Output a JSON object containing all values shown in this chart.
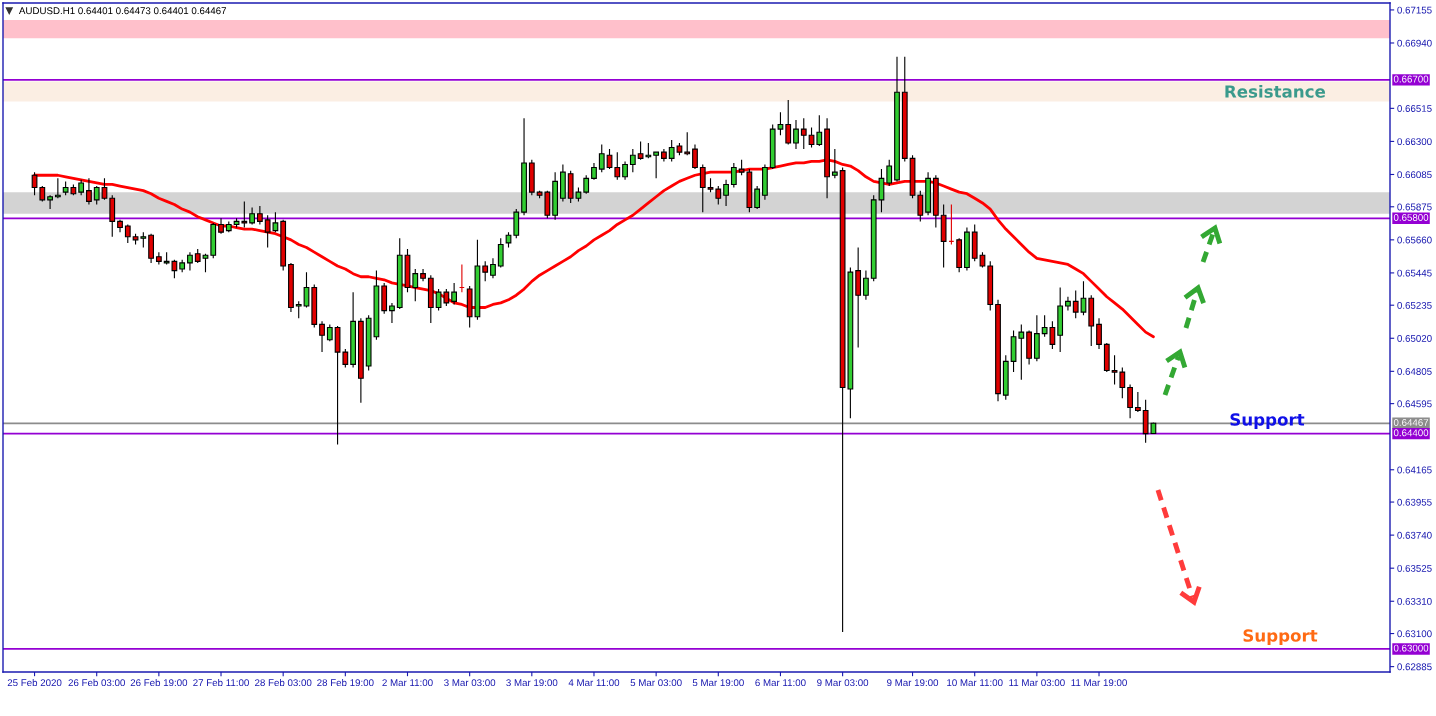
{
  "chart_data": {
    "type": "candlestick",
    "title": "AUDUSD.H1 0.64401 0.64473 0.64401 0.64467",
    "categories": [
      "25 Feb 2020",
      null,
      null,
      null,
      null,
      null,
      null,
      null,
      "26 Feb 03:00",
      null,
      null,
      null,
      null,
      null,
      null,
      null,
      "26 Feb 19:00",
      null,
      null,
      null,
      null,
      null,
      null,
      null,
      "27 Feb 11:00",
      null,
      null,
      null,
      null,
      null,
      null,
      null,
      "28 Feb 03:00",
      null,
      null,
      null,
      null,
      null,
      null,
      null,
      "28 Feb 19:00",
      null,
      null,
      null,
      null,
      null,
      null,
      null,
      "2 Mar 11:00",
      null,
      null,
      null,
      null,
      null,
      null,
      null,
      "3 Mar 03:00",
      null,
      null,
      null,
      null,
      null,
      null,
      null,
      "3 Mar 19:00",
      null,
      null,
      null,
      null,
      null,
      null,
      null,
      "4 Mar 11:00",
      null,
      null,
      null,
      null,
      null,
      null,
      null,
      "5 Mar 03:00",
      null,
      null,
      null,
      null,
      null,
      null,
      null,
      "5 Mar 19:00",
      null,
      null,
      null,
      null,
      null,
      null,
      null,
      "6 Mar 11:00",
      null,
      null,
      null,
      null,
      null,
      null,
      null,
      "9 Mar 03:00",
      null,
      null,
      null,
      null,
      null,
      null,
      null,
      null,
      "9 Mar 19:00",
      null,
      null,
      null,
      null,
      null,
      null,
      null,
      "10 Mar 11:00",
      null,
      null,
      null,
      null,
      null,
      null,
      null,
      "11 Mar 03:00",
      null,
      null,
      null,
      null,
      null,
      null,
      null,
      "11 Mar 19:00",
      null,
      null,
      null,
      null,
      null,
      null,
      null
    ],
    "ohlc": [
      [
        0.6608,
        0.661,
        0.6595,
        0.66
      ],
      [
        0.66,
        0.6601,
        0.6591,
        0.6592
      ],
      [
        0.6592,
        0.6595,
        0.6586,
        0.6594
      ],
      [
        0.6594,
        0.6606,
        0.6593,
        0.6595
      ],
      [
        0.6597,
        0.6604,
        0.6595,
        0.66
      ],
      [
        0.66,
        0.6602,
        0.6595,
        0.6596
      ],
      [
        0.6597,
        0.6605,
        0.6595,
        0.6603
      ],
      [
        0.6598,
        0.6606,
        0.6589,
        0.6591
      ],
      [
        0.6592,
        0.6601,
        0.6589,
        0.66
      ],
      [
        0.66,
        0.6606,
        0.6592,
        0.6593
      ],
      [
        0.6593,
        0.6595,
        0.6568,
        0.6578
      ],
      [
        0.6578,
        0.6579,
        0.6571,
        0.6574
      ],
      [
        0.6575,
        0.6576,
        0.6564,
        0.6568
      ],
      [
        0.6568,
        0.657,
        0.6563,
        0.6566
      ],
      [
        0.6567,
        0.6571,
        0.6561,
        0.6568
      ],
      [
        0.6569,
        0.657,
        0.6551,
        0.6554
      ],
      [
        0.6555,
        0.6558,
        0.655,
        0.6552
      ],
      [
        0.6551,
        0.6558,
        0.655,
        0.6552
      ],
      [
        0.6552,
        0.6553,
        0.6541,
        0.6546
      ],
      [
        0.6547,
        0.6553,
        0.6545,
        0.6551
      ],
      [
        0.6551,
        0.6558,
        0.6546,
        0.6556
      ],
      [
        0.6557,
        0.656,
        0.6551,
        0.6552
      ],
      [
        0.6554,
        0.6557,
        0.6545,
        0.6556
      ],
      [
        0.6556,
        0.6577,
        0.6554,
        0.6576
      ],
      [
        0.6576,
        0.658,
        0.657,
        0.6571
      ],
      [
        0.6572,
        0.6578,
        0.6571,
        0.6576
      ],
      [
        0.6576,
        0.658,
        0.6574,
        0.6578
      ],
      [
        0.6578,
        0.6591,
        0.6574,
        0.6577
      ],
      [
        0.6577,
        0.6587,
        0.6576,
        0.6583
      ],
      [
        0.6583,
        0.6588,
        0.6576,
        0.6578
      ],
      [
        0.6579,
        0.6582,
        0.6561,
        0.6571
      ],
      [
        0.6572,
        0.6584,
        0.6571,
        0.6577
      ],
      [
        0.6578,
        0.6579,
        0.6546,
        0.6549
      ],
      [
        0.655,
        0.6551,
        0.6519,
        0.6522
      ],
      [
        0.6523,
        0.6526,
        0.6515,
        0.6524
      ],
      [
        0.6523,
        0.6545,
        0.6522,
        0.6535
      ],
      [
        0.6535,
        0.6537,
        0.6509,
        0.6511
      ],
      [
        0.6511,
        0.6513,
        0.6493,
        0.6504
      ],
      [
        0.6501,
        0.6511,
        0.65,
        0.6509
      ],
      [
        0.6509,
        0.651,
        0.6433,
        0.6493
      ],
      [
        0.6493,
        0.6495,
        0.6483,
        0.6485
      ],
      [
        0.6485,
        0.6532,
        0.6483,
        0.6513
      ],
      [
        0.6513,
        0.6515,
        0.646,
        0.6476
      ],
      [
        0.6484,
        0.6517,
        0.6481,
        0.6515
      ],
      [
        0.6503,
        0.6546,
        0.6501,
        0.6536
      ],
      [
        0.6536,
        0.6538,
        0.6518,
        0.652
      ],
      [
        0.652,
        0.6525,
        0.6512,
        0.6523
      ],
      [
        0.6522,
        0.6567,
        0.6521,
        0.6556
      ],
      [
        0.6556,
        0.656,
        0.6532,
        0.6535
      ],
      [
        0.6535,
        0.6547,
        0.6526,
        0.6544
      ],
      [
        0.6544,
        0.6547,
        0.6539,
        0.6541
      ],
      [
        0.6541,
        0.6543,
        0.6512,
        0.6522
      ],
      [
        0.6522,
        0.6534,
        0.652,
        0.6532
      ],
      [
        0.6532,
        0.6534,
        0.6523,
        0.6525
      ],
      [
        0.6526,
        0.6538,
        0.6524,
        0.6532
      ],
      [
        0.6535,
        0.655,
        0.6532,
        0.6535
      ],
      [
        0.6534,
        0.6536,
        0.6509,
        0.6516
      ],
      [
        0.6516,
        0.6566,
        0.6514,
        0.6549
      ],
      [
        0.6549,
        0.6552,
        0.6539,
        0.6545
      ],
      [
        0.6543,
        0.6554,
        0.6541,
        0.655
      ],
      [
        0.6549,
        0.6567,
        0.6548,
        0.6563
      ],
      [
        0.6564,
        0.6571,
        0.6561,
        0.6569
      ],
      [
        0.6569,
        0.6586,
        0.6567,
        0.6584
      ],
      [
        0.6584,
        0.6645,
        0.6582,
        0.6616
      ],
      [
        0.6616,
        0.6618,
        0.6595,
        0.6597
      ],
      [
        0.6597,
        0.6598,
        0.6593,
        0.6595
      ],
      [
        0.6597,
        0.6598,
        0.658,
        0.6582
      ],
      [
        0.6582,
        0.661,
        0.6579,
        0.6604
      ],
      [
        0.6593,
        0.6615,
        0.6591,
        0.661
      ],
      [
        0.6609,
        0.6611,
        0.659,
        0.6593
      ],
      [
        0.6593,
        0.66,
        0.6591,
        0.6597
      ],
      [
        0.6597,
        0.6608,
        0.6596,
        0.6606
      ],
      [
        0.6606,
        0.6616,
        0.6605,
        0.6613
      ],
      [
        0.6612,
        0.6628,
        0.661,
        0.6622
      ],
      [
        0.6621,
        0.6625,
        0.6612,
        0.6613
      ],
      [
        0.6613,
        0.6623,
        0.6605,
        0.6607
      ],
      [
        0.6607,
        0.6617,
        0.6605,
        0.6615
      ],
      [
        0.6615,
        0.6625,
        0.661,
        0.6621
      ],
      [
        0.6622,
        0.663,
        0.6618,
        0.6619
      ],
      [
        0.662,
        0.6629,
        0.6619,
        0.6621
      ],
      [
        0.6621,
        0.6623,
        0.6606,
        0.6623
      ],
      [
        0.6623,
        0.6625,
        0.6617,
        0.6619
      ],
      [
        0.6619,
        0.6631,
        0.6617,
        0.6626
      ],
      [
        0.6627,
        0.6629,
        0.6621,
        0.6623
      ],
      [
        0.6623,
        0.6636,
        0.6621,
        0.6622
      ],
      [
        0.6625,
        0.6628,
        0.6612,
        0.6613
      ],
      [
        0.6613,
        0.6615,
        0.6584,
        0.66
      ],
      [
        0.66,
        0.6606,
        0.6597,
        0.6599
      ],
      [
        0.6599,
        0.6601,
        0.6589,
        0.6593
      ],
      [
        0.6595,
        0.6605,
        0.6588,
        0.6602
      ],
      [
        0.6602,
        0.6616,
        0.66,
        0.6613
      ],
      [
        0.6612,
        0.6618,
        0.6608,
        0.661
      ],
      [
        0.661,
        0.6612,
        0.6584,
        0.6587
      ],
      [
        0.6587,
        0.6601,
        0.6586,
        0.6599
      ],
      [
        0.6595,
        0.6615,
        0.6592,
        0.6613
      ],
      [
        0.6613,
        0.6641,
        0.6612,
        0.6638
      ],
      [
        0.6638,
        0.6649,
        0.6634,
        0.6641
      ],
      [
        0.6641,
        0.6657,
        0.6628,
        0.6629
      ],
      [
        0.6629,
        0.6644,
        0.6625,
        0.6638
      ],
      [
        0.6638,
        0.6645,
        0.6625,
        0.6634
      ],
      [
        0.6634,
        0.6639,
        0.6626,
        0.6628
      ],
      [
        0.6628,
        0.6647,
        0.6627,
        0.6636
      ],
      [
        0.6638,
        0.6645,
        0.6593,
        0.6607
      ],
      [
        0.6608,
        0.6625,
        0.6606,
        0.661
      ],
      [
        0.6611,
        0.6613,
        0.6311,
        0.647
      ],
      [
        0.6469,
        0.6548,
        0.645,
        0.6545
      ],
      [
        0.6546,
        0.6561,
        0.6496,
        0.653
      ],
      [
        0.653,
        0.6546,
        0.6527,
        0.6541
      ],
      [
        0.6541,
        0.6595,
        0.6539,
        0.6592
      ],
      [
        0.6592,
        0.6612,
        0.6584,
        0.6606
      ],
      [
        0.6603,
        0.6618,
        0.6601,
        0.6614
      ],
      [
        0.6605,
        0.6685,
        0.6604,
        0.6662
      ],
      [
        0.6662,
        0.6685,
        0.6617,
        0.6619
      ],
      [
        0.6619,
        0.6621,
        0.6593,
        0.6595
      ],
      [
        0.6595,
        0.6598,
        0.6578,
        0.6582
      ],
      [
        0.6584,
        0.661,
        0.6582,
        0.6606
      ],
      [
        0.6606,
        0.6608,
        0.6574,
        0.6582
      ],
      [
        0.6582,
        0.6589,
        0.6548,
        0.6565
      ],
      [
        0.6565,
        0.6589,
        0.6563,
        0.6565
      ],
      [
        0.6566,
        0.6567,
        0.6545,
        0.6548
      ],
      [
        0.6548,
        0.6574,
        0.6546,
        0.6571
      ],
      [
        0.6571,
        0.6576,
        0.6552,
        0.6554
      ],
      [
        0.6556,
        0.6558,
        0.6548,
        0.6549
      ],
      [
        0.6549,
        0.6552,
        0.652,
        0.6524
      ],
      [
        0.6524,
        0.6527,
        0.6461,
        0.6466
      ],
      [
        0.6465,
        0.6491,
        0.6462,
        0.6487
      ],
      [
        0.6487,
        0.6507,
        0.648,
        0.6503
      ],
      [
        0.6502,
        0.6511,
        0.6475,
        0.6506
      ],
      [
        0.6506,
        0.6507,
        0.6485,
        0.6489
      ],
      [
        0.6489,
        0.6517,
        0.6487,
        0.6505
      ],
      [
        0.6505,
        0.6517,
        0.6503,
        0.6509
      ],
      [
        0.6509,
        0.6513,
        0.6495,
        0.6498
      ],
      [
        0.6504,
        0.6535,
        0.6493,
        0.6523
      ],
      [
        0.6523,
        0.6529,
        0.652,
        0.6526
      ],
      [
        0.6526,
        0.6533,
        0.6515,
        0.6519
      ],
      [
        0.6519,
        0.6539,
        0.6517,
        0.6528
      ],
      [
        0.6528,
        0.653,
        0.6497,
        0.651
      ],
      [
        0.6511,
        0.6515,
        0.6495,
        0.6498
      ],
      [
        0.6498,
        0.6499,
        0.648,
        0.6481
      ],
      [
        0.6481,
        0.6491,
        0.6472,
        0.648
      ],
      [
        0.648,
        0.6483,
        0.6463,
        0.647
      ],
      [
        0.647,
        0.6472,
        0.645,
        0.6457
      ],
      [
        0.6457,
        0.6467,
        0.6454,
        0.6455
      ],
      [
        0.6455,
        0.6462,
        0.6434,
        0.644
      ],
      [
        0.64401,
        0.64473,
        0.64401,
        0.64467
      ]
    ],
    "colors": [
      "#e00000",
      "#e00000",
      "#32cd32",
      "#32cd32",
      "#32cd32",
      "#e00000",
      "#32cd32",
      "#e00000",
      "#32cd32",
      "#e00000",
      "#e00000",
      "#e00000",
      "#e00000",
      "#e00000",
      "#32cd32",
      "#e00000",
      "#e00000",
      "#32cd32",
      "#e00000",
      "#32cd32",
      "#32cd32",
      "#e00000",
      "#32cd32",
      "#32cd32",
      "#e00000",
      "#32cd32",
      "#32cd32",
      "#e00000",
      "#32cd32",
      "#e00000",
      "#e00000",
      "#32cd32",
      "#e00000",
      "#e00000",
      "#32cd32",
      "#32cd32",
      "#e00000",
      "#e00000",
      "#32cd32",
      "#e00000",
      "#e00000",
      "#32cd32",
      "#e00000",
      "#32cd32",
      "#32cd32",
      "#e00000",
      "#32cd32",
      "#32cd32",
      "#e00000",
      "#32cd32",
      "#e00000",
      "#e00000",
      "#32cd32",
      "#e00000",
      "#32cd32",
      "#e00000",
      "#e00000",
      "#32cd32",
      "#e00000",
      "#32cd32",
      "#32cd32",
      "#32cd32",
      "#32cd32",
      "#32cd32",
      "#e00000",
      "#e00000",
      "#e00000",
      "#32cd32",
      "#32cd32",
      "#e00000",
      "#32cd32",
      "#32cd32",
      "#32cd32",
      "#32cd32",
      "#e00000",
      "#e00000",
      "#32cd32",
      "#32cd32",
      "#e00000",
      "#32cd32",
      "#32cd32",
      "#e00000",
      "#32cd32",
      "#e00000",
      "#e00000",
      "#e00000",
      "#e00000",
      "#e00000",
      "#e00000",
      "#32cd32",
      "#32cd32",
      "#e00000",
      "#e00000",
      "#32cd32",
      "#32cd32",
      "#32cd32",
      "#32cd32",
      "#e00000",
      "#32cd32",
      "#e00000",
      "#e00000",
      "#32cd32",
      "#e00000",
      "#32cd32",
      "#e00000",
      "#32cd32",
      "#e00000",
      "#32cd32",
      "#32cd32",
      "#32cd32",
      "#32cd32",
      "#32cd32",
      "#e00000",
      "#e00000",
      "#e00000",
      "#32cd32",
      "#e00000",
      "#e00000",
      "#e00000",
      "#e00000",
      "#32cd32",
      "#e00000",
      "#e00000",
      "#e00000",
      "#e00000",
      "#32cd32",
      "#32cd32",
      "#32cd32",
      "#e00000",
      "#32cd32",
      "#32cd32",
      "#e00000",
      "#32cd32",
      "#32cd32",
      "#e00000",
      "#32cd32",
      "#e00000",
      "#e00000",
      "#e00000",
      "#e00000",
      "#e00000",
      "#e00000",
      "#e00000",
      "#e00000",
      "#32cd32"
    ],
    "series": [
      {
        "type": "line",
        "color": "#ff0000",
        "values": [
          0.6608,
          0.6608,
          0.6608,
          0.6608,
          0.6607,
          0.6606,
          0.6605,
          0.6604,
          0.6603,
          0.6602,
          0.6602,
          0.6601,
          0.66,
          0.6599,
          0.6598,
          0.6596,
          0.6593,
          0.6591,
          0.6589,
          0.6586,
          0.6584,
          0.6581,
          0.6579,
          0.6577,
          0.6575,
          0.6575,
          0.6574,
          0.6573,
          0.6573,
          0.6572,
          0.6571,
          0.657,
          0.6568,
          0.6566,
          0.6563,
          0.6561,
          0.6558,
          0.6555,
          0.6552,
          0.6549,
          0.6547,
          0.6544,
          0.6542,
          0.6542,
          0.6541,
          0.654,
          0.6538,
          0.6537,
          0.6536,
          0.6535,
          0.6534,
          0.6533,
          0.6531,
          0.6528,
          0.6525,
          0.6524,
          0.6522,
          0.6522,
          0.6522,
          0.6524,
          0.6525,
          0.6527,
          0.653,
          0.6534,
          0.6539,
          0.6543,
          0.6546,
          0.6549,
          0.6552,
          0.6555,
          0.6559,
          0.6562,
          0.6566,
          0.6569,
          0.6572,
          0.6576,
          0.6579,
          0.6582,
          0.6586,
          0.659,
          0.6594,
          0.6598,
          0.6601,
          0.6604,
          0.6606,
          0.6608,
          0.6609,
          0.661,
          0.661,
          0.661,
          0.661,
          0.6611,
          0.6612,
          0.6612,
          0.6612,
          0.6613,
          0.6614,
          0.6615,
          0.6616,
          0.6616,
          0.6617,
          0.6617,
          0.6618,
          0.6617,
          0.6615,
          0.6614,
          0.6611,
          0.6607,
          0.6604,
          0.6603,
          0.6602,
          0.6603,
          0.6604,
          0.6604,
          0.6604,
          0.6604,
          0.6603,
          0.6601,
          0.6599,
          0.6597,
          0.6596,
          0.6593,
          0.659,
          0.6586,
          0.6579,
          0.6573,
          0.6568,
          0.6563,
          0.6558,
          0.6554,
          0.6553,
          0.6552,
          0.6551,
          0.655,
          0.6547,
          0.6544,
          0.6539,
          0.6534,
          0.6529,
          0.6525,
          0.6521,
          0.6516,
          0.6511,
          0.6506,
          0.6503
        ]
      }
    ],
    "ylim": [
      0.6285,
      0.672
    ],
    "yticks": [
      0.67155,
      {
        "value": 0.6694,
        "label": "0.66940"
      },
      0.66515,
      {
        "value": 0.663,
        "label": "0.66300"
      },
      0.66085,
      0.65875,
      {
        "value": 0.6566,
        "label": "0.65660"
      },
      0.65445,
      0.65235,
      {
        "value": 0.6502,
        "label": "0.65020"
      },
      0.64805,
      0.64595,
      0.64165,
      0.63955,
      {
        "value": 0.6374,
        "label": "0.63740"
      },
      0.63525,
      {
        "value": 0.6331,
        "label": "0.63310"
      },
      {
        "value": 0.631,
        "label": "0.63100"
      },
      0.62885
    ],
    "bands": [
      {
        "axis": "y",
        "from": 0.6697,
        "to": 0.6709,
        "color": "#ffc0cb"
      },
      {
        "axis": "y",
        "from": 0.6656,
        "to": 0.6669,
        "color": "#fbeee3"
      },
      {
        "axis": "y",
        "from": 0.6583,
        "to": 0.6597,
        "color": "#d3d3d3"
      }
    ],
    "ref_lines": [
      {
        "axis": "y",
        "value": 0.667,
        "label": "0.66700",
        "color": "#9400d3"
      },
      {
        "axis": "y",
        "value": 0.658,
        "label": "0.65800",
        "color": "#9400d3"
      },
      {
        "axis": "y",
        "value": 0.64467,
        "label": "0.64467",
        "color": "#8c8c8c"
      },
      {
        "axis": "y",
        "value": 0.644,
        "label": "0.64400",
        "color": "#9400d3"
      },
      {
        "axis": "y",
        "value": 0.63,
        "label": "0.63000",
        "color": "#9400d3"
      }
    ],
    "annotations": [
      "Resistance",
      "Support",
      "Support"
    ]
  }
}
